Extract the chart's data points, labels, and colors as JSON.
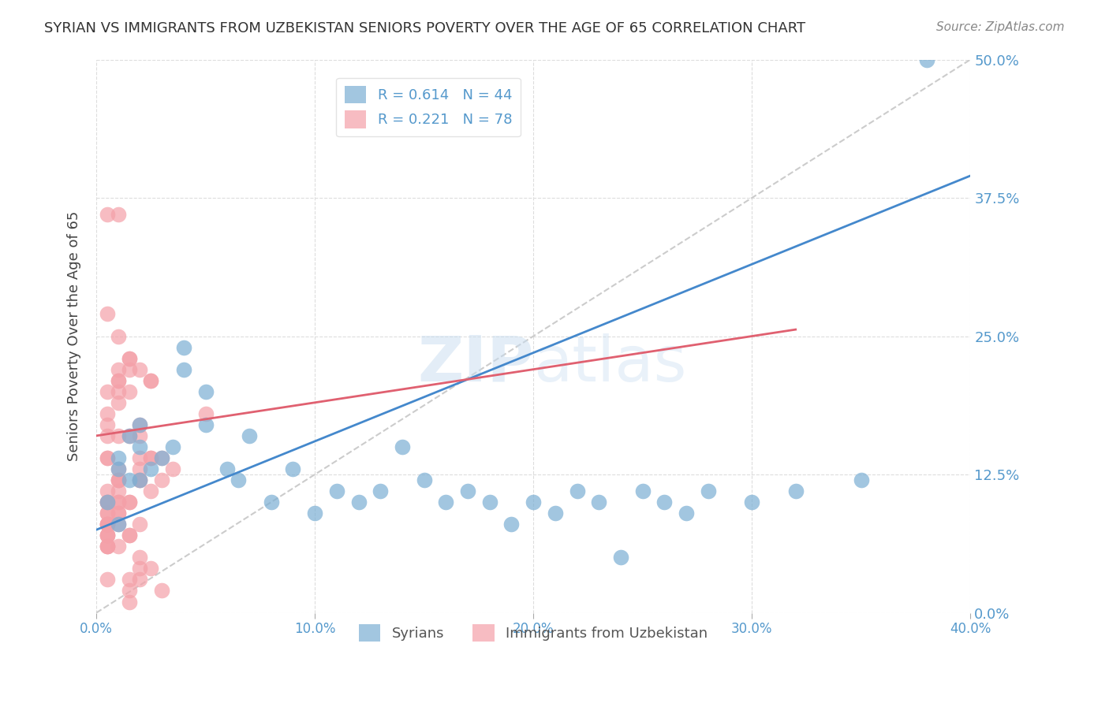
{
  "title": "SYRIAN VS IMMIGRANTS FROM UZBEKISTAN SENIORS POVERTY OVER THE AGE OF 65 CORRELATION CHART",
  "source": "Source: ZipAtlas.com",
  "ylabel": "Seniors Poverty Over the Age of 65",
  "xlabel_ticks": [
    "0.0%",
    "10.0%",
    "20.0%",
    "30.0%",
    "40.0%"
  ],
  "ylabel_ticks": [
    "0.0%",
    "12.5%",
    "25.0%",
    "37.5%",
    "50.0%"
  ],
  "xlim": [
    0.0,
    0.4
  ],
  "ylim": [
    0.0,
    0.5
  ],
  "watermark": "ZIPatlas",
  "legend_entries": [
    {
      "label": "R = 0.614   N = 44",
      "color": "#88aadd"
    },
    {
      "label": "R = 0.221   N = 78",
      "color": "#f08080"
    }
  ],
  "syrians_R": 0.614,
  "syrians_N": 44,
  "uzbek_R": 0.221,
  "uzbek_N": 78,
  "syrian_color": "#7bafd4",
  "uzbek_color": "#f4a0a8",
  "syrian_line_color": "#4488cc",
  "uzbek_line_color": "#e06070",
  "diagonal_color": "#cccccc",
  "grid_color": "#dddddd",
  "title_color": "#333333",
  "axis_color": "#5599cc",
  "right_tick_color": "#5599cc",
  "syrian_x": [
    0.01,
    0.02,
    0.01,
    0.015,
    0.005,
    0.01,
    0.02,
    0.02,
    0.015,
    0.025,
    0.03,
    0.035,
    0.04,
    0.04,
    0.05,
    0.05,
    0.06,
    0.065,
    0.07,
    0.08,
    0.09,
    0.1,
    0.11,
    0.12,
    0.13,
    0.14,
    0.15,
    0.16,
    0.17,
    0.18,
    0.19,
    0.2,
    0.21,
    0.22,
    0.23,
    0.24,
    0.25,
    0.26,
    0.27,
    0.28,
    0.3,
    0.32,
    0.35,
    0.38
  ],
  "syrian_y": [
    0.08,
    0.12,
    0.14,
    0.16,
    0.1,
    0.13,
    0.15,
    0.17,
    0.12,
    0.13,
    0.14,
    0.15,
    0.22,
    0.24,
    0.2,
    0.17,
    0.13,
    0.12,
    0.16,
    0.1,
    0.13,
    0.09,
    0.11,
    0.1,
    0.11,
    0.15,
    0.12,
    0.1,
    0.11,
    0.1,
    0.08,
    0.1,
    0.09,
    0.11,
    0.1,
    0.05,
    0.11,
    0.1,
    0.09,
    0.11,
    0.1,
    0.11,
    0.12,
    0.5
  ],
  "uzbek_x": [
    0.005,
    0.01,
    0.005,
    0.01,
    0.015,
    0.005,
    0.01,
    0.005,
    0.01,
    0.015,
    0.005,
    0.005,
    0.01,
    0.005,
    0.01,
    0.01,
    0.005,
    0.01,
    0.02,
    0.02,
    0.025,
    0.015,
    0.01,
    0.015,
    0.025,
    0.02,
    0.02,
    0.025,
    0.01,
    0.015,
    0.03,
    0.035,
    0.02,
    0.02,
    0.025,
    0.03,
    0.025,
    0.02,
    0.015,
    0.01,
    0.01,
    0.005,
    0.005,
    0.005,
    0.01,
    0.015,
    0.02,
    0.01,
    0.015,
    0.005,
    0.015,
    0.025,
    0.03,
    0.02,
    0.02,
    0.02,
    0.015,
    0.015,
    0.01,
    0.005,
    0.005,
    0.01,
    0.005,
    0.01,
    0.005,
    0.05,
    0.005,
    0.005,
    0.005,
    0.005,
    0.005,
    0.01,
    0.005,
    0.005,
    0.005,
    0.015,
    0.005,
    0.01
  ],
  "uzbek_y": [
    0.36,
    0.36,
    0.16,
    0.22,
    0.22,
    0.14,
    0.12,
    0.27,
    0.25,
    0.23,
    0.2,
    0.18,
    0.19,
    0.17,
    0.21,
    0.16,
    0.14,
    0.21,
    0.17,
    0.22,
    0.21,
    0.23,
    0.2,
    0.2,
    0.21,
    0.14,
    0.16,
    0.14,
    0.12,
    0.16,
    0.14,
    0.13,
    0.12,
    0.13,
    0.14,
    0.12,
    0.11,
    0.12,
    0.1,
    0.13,
    0.11,
    0.1,
    0.11,
    0.08,
    0.1,
    0.07,
    0.08,
    0.12,
    0.1,
    0.03,
    0.03,
    0.04,
    0.02,
    0.05,
    0.03,
    0.04,
    0.02,
    0.01,
    0.09,
    0.08,
    0.07,
    0.08,
    0.1,
    0.1,
    0.06,
    0.18,
    0.1,
    0.09,
    0.08,
    0.07,
    0.06,
    0.09,
    0.07,
    0.09,
    0.08,
    0.07,
    0.06,
    0.06
  ]
}
